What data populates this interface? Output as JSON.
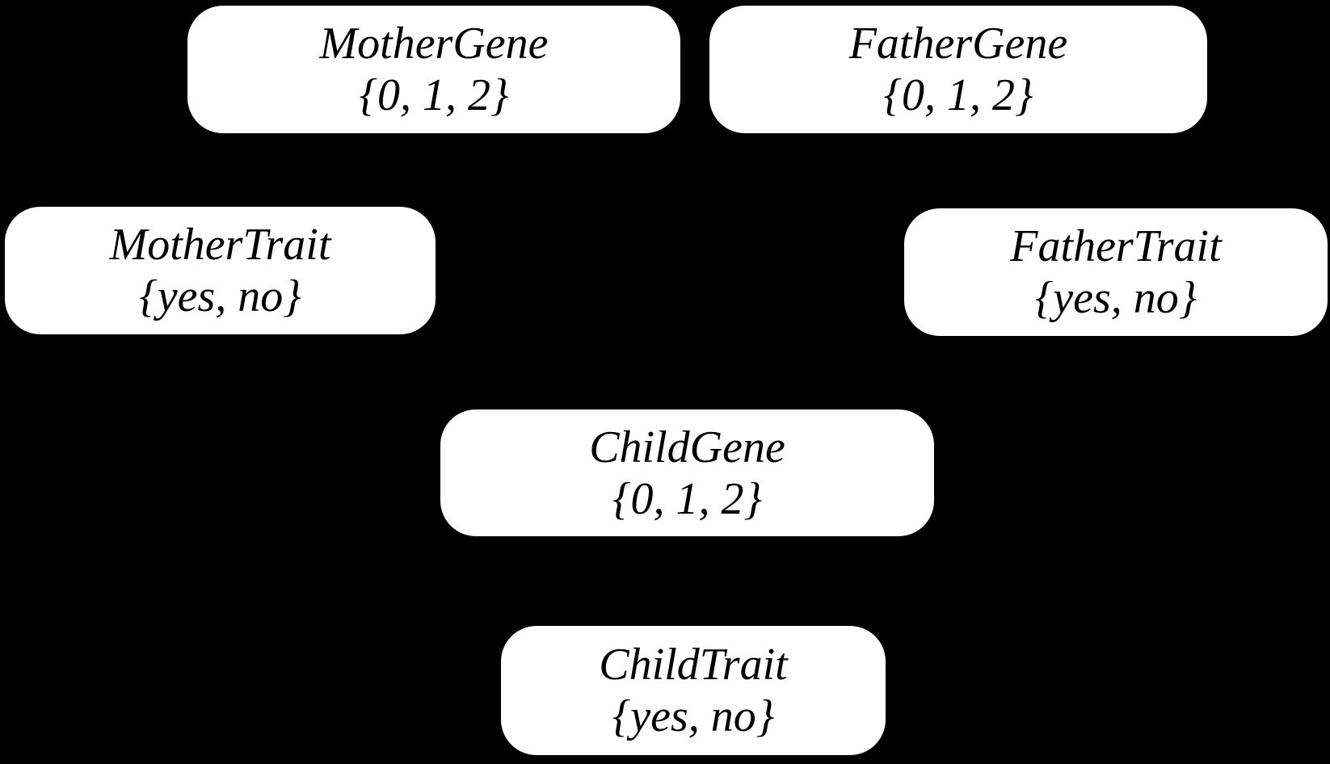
{
  "diagram": {
    "type": "bayesian-network",
    "background_color": "#000000",
    "node_fill_color": "#ffffff",
    "node_text_color": "#000000",
    "nodes": [
      {
        "id": "mother-gene",
        "label": "MotherGene",
        "domain": "{0, 1, 2}"
      },
      {
        "id": "father-gene",
        "label": "FatherGene",
        "domain": "{0, 1, 2}"
      },
      {
        "id": "mother-trait",
        "label": "MotherTrait",
        "domain": "{yes, no}"
      },
      {
        "id": "father-trait",
        "label": "FatherTrait",
        "domain": "{yes, no}"
      },
      {
        "id": "child-gene",
        "label": "ChildGene",
        "domain": "{0, 1, 2}"
      },
      {
        "id": "child-trait",
        "label": "ChildTrait",
        "domain": "{yes, no}"
      }
    ]
  }
}
